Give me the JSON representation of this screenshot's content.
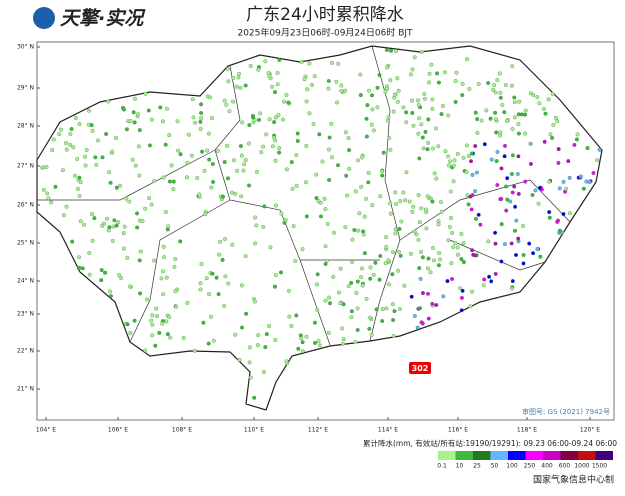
{
  "header": {
    "logo": "天擎·实况",
    "title": "广东24小时累积降水",
    "subtitle": "2025年09月23日06时-09月24日06时 BJT"
  },
  "map": {
    "lat_labels": [
      "30° N",
      "29° N",
      "28° N",
      "27° N",
      "26° N",
      "25° N",
      "24° N",
      "23° N",
      "22° N",
      "21° N"
    ],
    "lon_labels": [
      "104° E",
      "106° E",
      "108° E",
      "110° E",
      "112° E",
      "114° E",
      "116° E",
      "118° E",
      "120° E"
    ],
    "badge": "302",
    "approval": "审图号: GS (2021) 7942号"
  },
  "legend": {
    "title": "累计降水(mm, 有效站/所有站:19190/19291): 09.23 06:00-09.24 06:00",
    "labels": [
      "0.1",
      "10",
      "25",
      "50",
      "100",
      "250",
      "400",
      "600",
      "1000",
      "1500"
    ],
    "colors": [
      "#a6f28f",
      "#3dba3d",
      "#1e7b1e",
      "#61b8ff",
      "#0000ff",
      "#fa00fa",
      "#c800c8",
      "#800040",
      "#c01010",
      "#400080"
    ]
  },
  "footer": "国家气象信息中心制"
}
